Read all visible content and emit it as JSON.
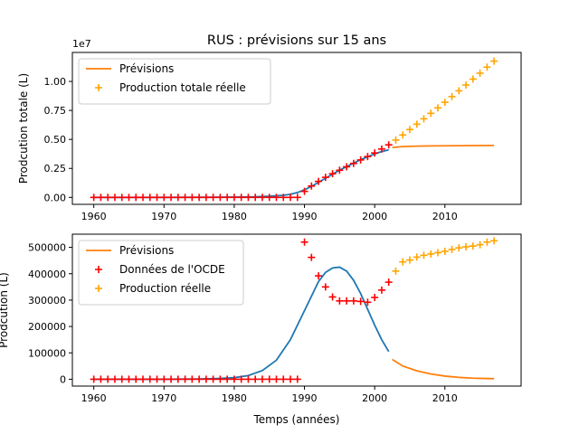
{
  "figure": {
    "title": "RUS : prévisions sur 15 ans",
    "xlabel": "Temps (années)"
  },
  "chart_data": [
    {
      "type": "line",
      "title": "RUS : prévisions sur 15 ans",
      "xlabel": "",
      "ylabel": "Prodcution totale (L)",
      "offset_label": "1e7",
      "xlim": [
        1956.95,
        2020.85
      ],
      "ylim": [
        -600000,
        12500000
      ],
      "xticks": [
        1960,
        1970,
        1980,
        1990,
        2000,
        2010
      ],
      "xtick_labels": [
        "1960",
        "1970",
        "1980",
        "1990",
        "2000",
        "2010"
      ],
      "yticks": [
        0,
        2500000,
        5000000,
        7500000,
        10000000
      ],
      "ytick_labels": [
        "0.00",
        "0.25",
        "0.50",
        "0.75",
        "1.00"
      ],
      "grid": false,
      "legend_position": "top-left",
      "legend": [
        {
          "label": "Prévisions",
          "kind": "line",
          "color": "#ff7f0e"
        },
        {
          "label": "Production totale réelle",
          "kind": "plus",
          "color": "#ffa500"
        }
      ],
      "series": [
        {
          "kind": "line",
          "color": "#1f77b4",
          "x": [
            1960,
            1970,
            1980,
            1983,
            1985,
            1987,
            1988,
            1989,
            1990,
            1991,
            1992,
            1993,
            1994,
            1995,
            1996,
            1997,
            1998,
            1999,
            2000,
            2001,
            2002
          ],
          "y": [
            0,
            0,
            20000,
            50000,
            100000,
            180000,
            270000,
            420000,
            650000,
            950000,
            1300000,
            1650000,
            2000000,
            2350000,
            2650000,
            2950000,
            3250000,
            3500000,
            3750000,
            3950000,
            4100000
          ]
        },
        {
          "kind": "line",
          "name": "Prévisions",
          "color": "#ff7f0e",
          "x": [
            2002.5,
            2004,
            2006,
            2008,
            2010,
            2012,
            2014,
            2017
          ],
          "y": [
            4300000,
            4380000,
            4420000,
            4440000,
            4450000,
            4460000,
            4470000,
            4480000
          ]
        },
        {
          "kind": "plus",
          "color": "#ff0000",
          "x": [
            1960,
            1961,
            1962,
            1963,
            1964,
            1965,
            1966,
            1967,
            1968,
            1969,
            1970,
            1971,
            1972,
            1973,
            1974,
            1975,
            1976,
            1977,
            1978,
            1979,
            1980,
            1981,
            1982,
            1983,
            1984,
            1985,
            1986,
            1987,
            1988,
            1989,
            1990,
            1991,
            1992,
            1993,
            1994,
            1995,
            1996,
            1997,
            1998,
            1999,
            2000,
            2001,
            2002
          ],
          "y": [
            0,
            0,
            0,
            0,
            0,
            0,
            0,
            0,
            0,
            0,
            0,
            0,
            0,
            0,
            0,
            0,
            0,
            0,
            0,
            0,
            0,
            0,
            0,
            0,
            0,
            0,
            0,
            0,
            0,
            0,
            520000,
            980000,
            1380000,
            1730000,
            2040000,
            2340000,
            2640000,
            2930000,
            3230000,
            3520000,
            3830000,
            4170000,
            4530000
          ]
        },
        {
          "kind": "plus",
          "name": "Production totale réelle",
          "color": "#ffa500",
          "x": [
            2003,
            2004,
            2005,
            2006,
            2007,
            2008,
            2009,
            2010,
            2011,
            2012,
            2013,
            2014,
            2015,
            2016,
            2017
          ],
          "y": [
            4940000,
            5380000,
            5850000,
            6310000,
            6780000,
            7250000,
            7720000,
            8200000,
            8690000,
            9190000,
            9690000,
            10200000,
            10710000,
            11230000,
            11750000
          ]
        }
      ]
    },
    {
      "type": "line",
      "title": "",
      "xlabel": "Temps (années)",
      "ylabel": "Prodcution (L)",
      "xlim": [
        1956.95,
        2020.85
      ],
      "ylim": [
        -26000,
        550000
      ],
      "xticks": [
        1960,
        1970,
        1980,
        1990,
        2000,
        2010
      ],
      "xtick_labels": [
        "1960",
        "1970",
        "1980",
        "1990",
        "2000",
        "2010"
      ],
      "yticks": [
        0,
        100000,
        200000,
        300000,
        400000,
        500000
      ],
      "ytick_labels": [
        "0",
        "100000",
        "200000",
        "300000",
        "400000",
        "500000"
      ],
      "grid": false,
      "legend_position": "top-left",
      "legend": [
        {
          "label": "Prévisions",
          "kind": "line",
          "color": "#ff7f0e"
        },
        {
          "label": "Données de l'OCDE",
          "kind": "plus",
          "color": "#ff0000"
        },
        {
          "label": "Production réelle",
          "kind": "plus",
          "color": "#ffa500"
        }
      ],
      "series": [
        {
          "kind": "line",
          "color": "#1f77b4",
          "x": [
            1960,
            1970,
            1975,
            1978,
            1980,
            1982,
            1984,
            1986,
            1988,
            1990,
            1992,
            1993,
            1994,
            1995,
            1996,
            1997,
            1998,
            1999,
            2000,
            2001,
            2002
          ],
          "y": [
            0,
            0,
            1000,
            3000,
            6000,
            14000,
            33000,
            72000,
            150000,
            260000,
            370000,
            405000,
            422000,
            425000,
            410000,
            375000,
            325000,
            265000,
            205000,
            150000,
            105000
          ]
        },
        {
          "kind": "line",
          "name": "Prévisions",
          "color": "#ff7f0e",
          "x": [
            2002.5,
            2004,
            2006,
            2008,
            2010,
            2012,
            2014,
            2017
          ],
          "y": [
            75000,
            50000,
            32000,
            20000,
            12000,
            7000,
            4000,
            2000
          ]
        },
        {
          "kind": "plus",
          "name": "Données de l'OCDE",
          "color": "#ff0000",
          "x": [
            1960,
            1961,
            1962,
            1963,
            1964,
            1965,
            1966,
            1967,
            1968,
            1969,
            1970,
            1971,
            1972,
            1973,
            1974,
            1975,
            1976,
            1977,
            1978,
            1979,
            1980,
            1981,
            1982,
            1983,
            1984,
            1985,
            1986,
            1987,
            1988,
            1989,
            1990,
            1991,
            1992,
            1993,
            1994,
            1995,
            1996,
            1997,
            1998,
            1999,
            2000,
            2001,
            2002
          ],
          "y": [
            0,
            0,
            0,
            0,
            0,
            0,
            0,
            0,
            0,
            0,
            0,
            0,
            0,
            0,
            0,
            0,
            0,
            0,
            0,
            0,
            0,
            0,
            0,
            0,
            0,
            0,
            0,
            0,
            0,
            0,
            520000,
            462000,
            392000,
            350000,
            312000,
            297000,
            297000,
            297000,
            295000,
            292000,
            310000,
            338000,
            368000
          ]
        },
        {
          "kind": "plus",
          "name": "Production réelle",
          "color": "#ffa500",
          "x": [
            2003,
            2004,
            2005,
            2006,
            2007,
            2008,
            2009,
            2010,
            2011,
            2012,
            2013,
            2014,
            2015,
            2016,
            2017
          ],
          "y": [
            410000,
            445000,
            452000,
            463000,
            470000,
            475000,
            480000,
            485000,
            492000,
            498000,
            502000,
            505000,
            510000,
            520000,
            525000
          ]
        }
      ]
    }
  ]
}
